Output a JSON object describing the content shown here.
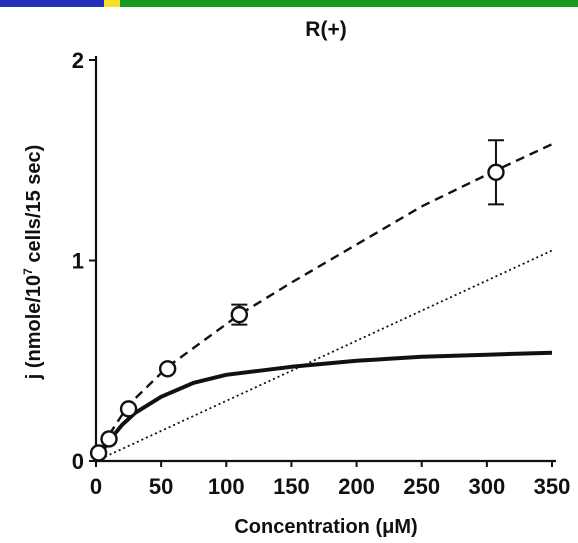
{
  "top_bar": {
    "colors": [
      "#1f2fb8",
      "#f5e12a",
      "#159c1f"
    ]
  },
  "chart_data": {
    "type": "line",
    "title": "R(+)",
    "xlabel": "Concentration (μM)",
    "ylabel": {
      "prefix": "j (nmole/10",
      "superscript": "7",
      "suffix": " cells/15 sec)"
    },
    "xlim": [
      0,
      350
    ],
    "ylim": [
      0,
      2
    ],
    "x_ticks": [
      0,
      50,
      100,
      150,
      200,
      250,
      300,
      350
    ],
    "y_ticks": [
      0,
      1,
      2
    ],
    "grid": false,
    "legend": "none",
    "points": {
      "x": [
        2,
        10,
        25,
        55,
        110,
        307
      ],
      "y": [
        0.04,
        0.11,
        0.26,
        0.46,
        0.73,
        1.44
      ],
      "error": [
        0,
        0,
        0,
        0,
        0.05,
        0.16
      ]
    },
    "series": [
      {
        "style": "dashed",
        "x": [
          0,
          10,
          25,
          55,
          110,
          150,
          200,
          250,
          307,
          350
        ],
        "y": [
          0,
          0.13,
          0.28,
          0.47,
          0.73,
          0.89,
          1.08,
          1.27,
          1.45,
          1.58
        ]
      },
      {
        "style": "solid",
        "x": [
          0,
          10,
          20,
          30,
          50,
          75,
          100,
          125,
          150,
          200,
          250,
          300,
          350
        ],
        "y": [
          0,
          0.1,
          0.18,
          0.24,
          0.32,
          0.39,
          0.43,
          0.45,
          0.47,
          0.5,
          0.52,
          0.53,
          0.54
        ]
      },
      {
        "style": "dotted",
        "x": [
          0,
          350
        ],
        "y": [
          0,
          1.05
        ]
      }
    ]
  }
}
